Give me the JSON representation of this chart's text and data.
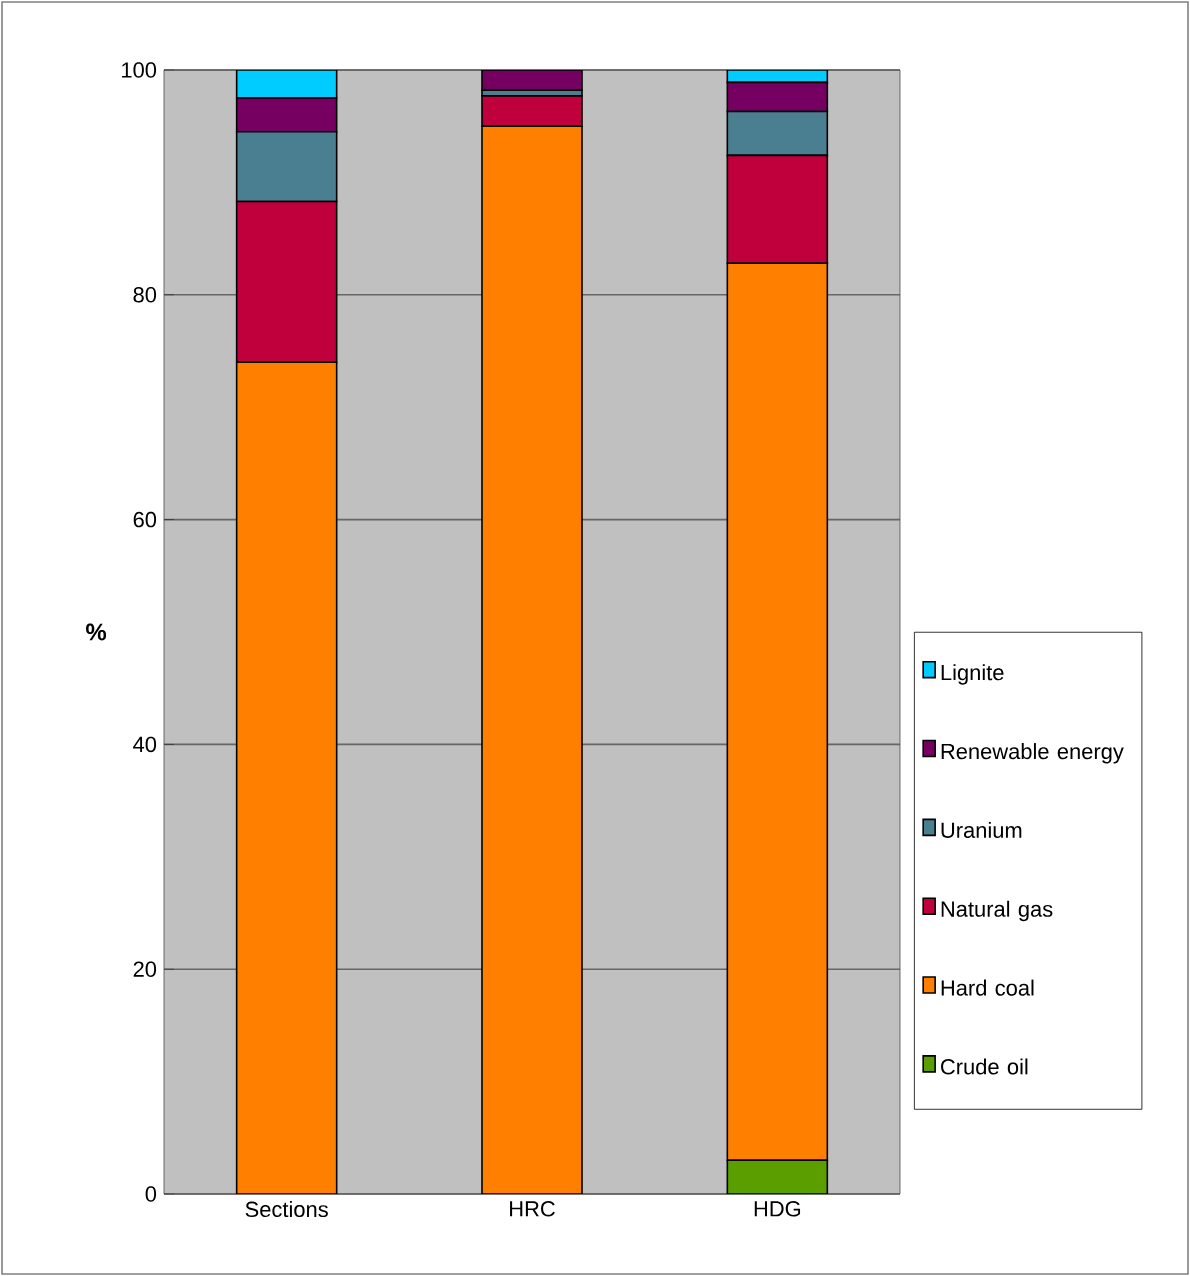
{
  "chart_data": {
    "type": "bar",
    "stacked": true,
    "ylabel": "%",
    "categories": [
      "Sections",
      "HRC",
      "HDG"
    ],
    "series": [
      {
        "name": "Crude oil",
        "color": "#5a9e00",
        "values": [
          0,
          null,
          3.0
        ]
      },
      {
        "name": "Hard coal",
        "color": "#ff8000",
        "values": [
          74.0,
          95.0,
          79.8
        ]
      },
      {
        "name": "Natural gas",
        "color": "#c0003c",
        "values": [
          14.3,
          2.7,
          9.6
        ]
      },
      {
        "name": "Uranium",
        "color": "#4a7f92",
        "values": [
          6.2,
          0.5,
          3.9
        ]
      },
      {
        "name": "Renewable energy",
        "color": "#760062",
        "values": [
          3.0,
          1.8,
          2.6
        ]
      },
      {
        "name": "Lignite",
        "color": "#00ccff",
        "values": [
          2.5,
          0,
          1.1
        ]
      }
    ],
    "ylim": [
      0,
      100
    ],
    "yticks": [
      0,
      20,
      40,
      60,
      80,
      100
    ],
    "grid": "y",
    "legend": "right"
  }
}
